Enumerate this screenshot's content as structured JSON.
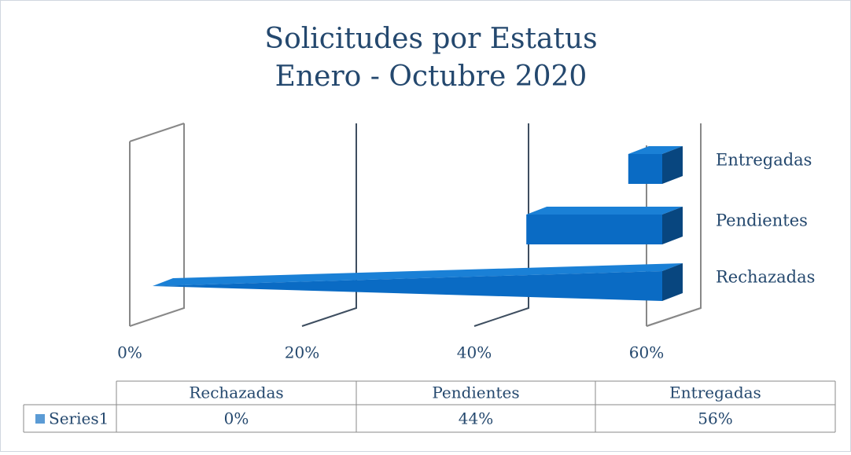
{
  "chart_data": {
    "type": "bar3d",
    "title": "Solicitudes por Estatus",
    "subtitle": "Enero - Octubre 2020",
    "categories": [
      "Rechazadas",
      "Pendientes",
      "Entregadas"
    ],
    "series": [
      {
        "name": "Series1",
        "color": "#0a6bc4",
        "values": [
          0,
          44,
          56
        ],
        "value_labels": [
          "0%",
          "44%",
          "56%"
        ]
      }
    ],
    "xlim": [
      0,
      60
    ],
    "xticks": [
      {
        "value": 0,
        "label": "0%"
      },
      {
        "value": 20,
        "label": "20%"
      },
      {
        "value": 40,
        "label": "40%"
      },
      {
        "value": 60,
        "label": "60%"
      }
    ],
    "grid": true,
    "legend": "bottom"
  }
}
